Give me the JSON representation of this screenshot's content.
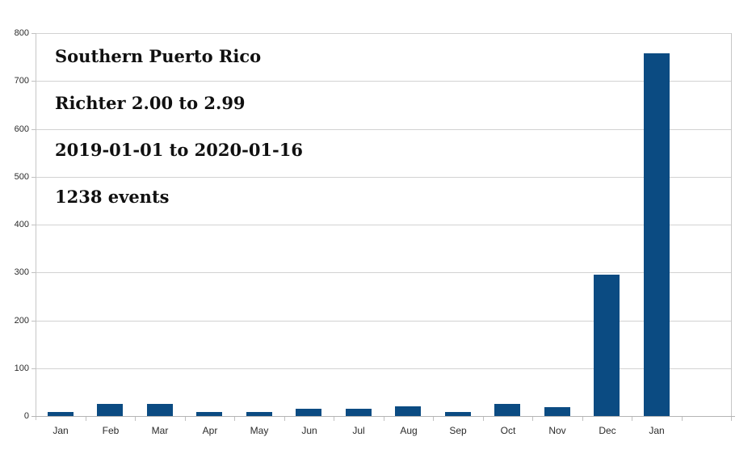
{
  "annotation": {
    "region": "Southern Puerto Rico",
    "magnitude_range": "Richter 2.00 to 2.99",
    "date_range": "2019-01-01 to 2020-01-16",
    "event_count": "1238 events"
  },
  "chart_data": {
    "type": "bar",
    "title": "Southern Puerto Rico",
    "annotations": [
      "Southern Puerto Rico",
      "Richter 2.00 to 2.99",
      "2019-01-01 to 2020-01-16",
      "1238 events"
    ],
    "categories": [
      "Jan",
      "Feb",
      "Mar",
      "Apr",
      "May",
      "Jun",
      "Jul",
      "Aug",
      "Sep",
      "Oct",
      "Nov",
      "Dec",
      "Jan"
    ],
    "values": [
      8,
      25,
      25,
      9,
      8,
      16,
      16,
      21,
      8,
      25,
      18,
      295,
      757
    ],
    "xlabel": "",
    "ylabel": "",
    "ylim": [
      0,
      800
    ],
    "y_ticks": [
      0,
      100,
      200,
      300,
      400,
      500,
      600,
      700,
      800
    ],
    "grid": true,
    "legend": false,
    "legend_position": "none",
    "extra_empty_slots_right": 1,
    "bar_color": "#0b4b82",
    "gridline_color": "#d2d2d2",
    "border_color": "#c6c6c6",
    "axis_color": "#b4b4b4",
    "tick_color": "#c0c0c0",
    "label_color": "#2b2b2b",
    "background": "#ffffff"
  }
}
